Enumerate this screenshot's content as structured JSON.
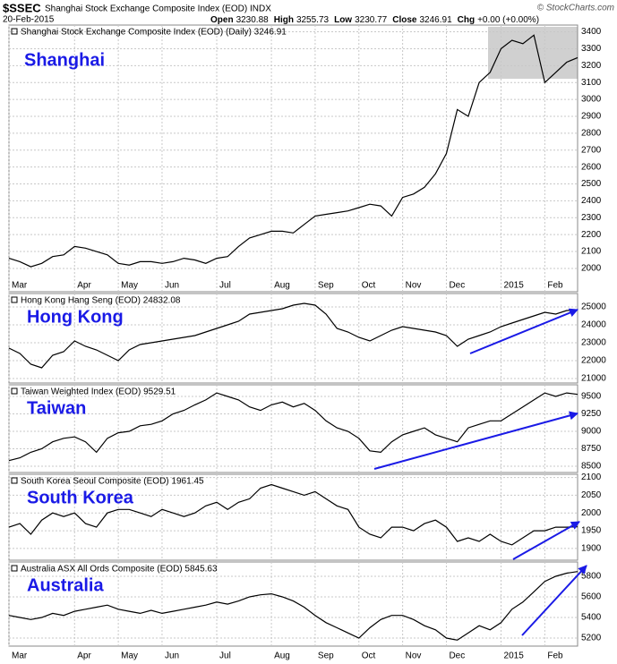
{
  "header": {
    "symbol": "$SSEC",
    "title": "Shanghai Stock Exchange Composite Index (EOD) INDX",
    "date": "20-Feb-2015",
    "quote": [
      {
        "label": "Open",
        "value": 3230.88
      },
      {
        "label": "High",
        "value": 3255.73
      },
      {
        "label": "Low",
        "value": 3230.77
      },
      {
        "label": "Close",
        "value": 3246.91
      },
      {
        "label": "Chg",
        "value": "+0.00 (+0.00%)"
      }
    ],
    "credit": "© StockCharts.com"
  },
  "chart_data": [
    {
      "type": "line",
      "label": "Shanghai",
      "categories": [
        "Mar",
        null,
        null,
        null,
        null,
        null,
        "Apr",
        null,
        null,
        null,
        "May",
        null,
        null,
        null,
        "Jun",
        null,
        null,
        null,
        null,
        "Jul",
        null,
        null,
        null,
        null,
        "Aug",
        null,
        null,
        null,
        "Sep",
        null,
        null,
        null,
        "Oct",
        null,
        null,
        null,
        "Nov",
        null,
        null,
        null,
        "Dec",
        null,
        null,
        null,
        null,
        "2015",
        null,
        null,
        null,
        "Feb",
        null,
        null,
        null
      ],
      "series": [
        {
          "name": "Shanghai Stock Exchange Composite Index (EOD) (Daily) 3246.91",
          "color": "#000000",
          "values": [
            2060,
            2040,
            2010,
            2030,
            2070,
            2080,
            2130,
            2120,
            2100,
            2080,
            2030,
            2020,
            2040,
            2040,
            2030,
            2040,
            2060,
            2050,
            2030,
            2060,
            2070,
            2130,
            2180,
            2200,
            2220,
            2220,
            2210,
            2260,
            2310,
            2320,
            2330,
            2340,
            2360,
            2380,
            2370,
            2310,
            2420,
            2440,
            2480,
            2560,
            2680,
            2940,
            2900,
            3100,
            3160,
            3300,
            3350,
            3330,
            3380,
            3100,
            3160,
            3220,
            3247
          ]
        }
      ],
      "ylim": [
        1862,
        3440
      ],
      "yticks": [
        2000,
        2100,
        2200,
        2300,
        2400,
        2500,
        2600,
        2700,
        2800,
        2900,
        3000,
        3100,
        3200,
        3300,
        3400
      ],
      "grid": true
    },
    {
      "type": "line",
      "label": "Hong Kong",
      "series": [
        {
          "name": "Hong Kong Hang Seng (EOD) 24832.08",
          "color": "#000000",
          "values": [
            22700,
            22400,
            21800,
            21600,
            22300,
            22500,
            23100,
            22800,
            22600,
            22300,
            22000,
            22600,
            22900,
            23000,
            23100,
            23200,
            23300,
            23400,
            23600,
            23800,
            24000,
            24200,
            24600,
            24700,
            24800,
            24900,
            25100,
            25200,
            25100,
            24600,
            23800,
            23600,
            23300,
            23100,
            23400,
            23700,
            23900,
            23800,
            23700,
            23600,
            23400,
            22800,
            23200,
            23400,
            23600,
            23900,
            24100,
            24300,
            24500,
            24700,
            24600,
            24800,
            24832
          ]
        }
      ],
      "ylim": [
        20750,
        25750
      ],
      "yticks": [
        21000,
        22000,
        23000,
        24000,
        25000
      ],
      "grid": true
    },
    {
      "type": "line",
      "label": "Taiwan",
      "series": [
        {
          "name": "Taiwan Weighted Index (EOD) 9529.51",
          "color": "#000000",
          "values": [
            8580,
            8620,
            8700,
            8750,
            8850,
            8900,
            8920,
            8850,
            8700,
            8900,
            8980,
            9000,
            9080,
            9100,
            9150,
            9250,
            9300,
            9380,
            9450,
            9550,
            9500,
            9450,
            9350,
            9300,
            9380,
            9420,
            9350,
            9400,
            9300,
            9150,
            9050,
            9000,
            8900,
            8720,
            8700,
            8850,
            8950,
            9000,
            9050,
            8950,
            8900,
            8850,
            9050,
            9100,
            9150,
            9150,
            9250,
            9350,
            9450,
            9550,
            9500,
            9550,
            9530
          ]
        }
      ],
      "ylim": [
        8410,
        9667
      ],
      "yticks": [
        8500,
        8750,
        9000,
        9250,
        9500
      ],
      "grid": true
    },
    {
      "type": "line",
      "label": "South Korea",
      "series": [
        {
          "name": "South Korea Seoul Composite (EOD) 1961.45",
          "color": "#000000",
          "values": [
            1960,
            1970,
            1940,
            1980,
            2000,
            1990,
            2000,
            1970,
            1960,
            2000,
            2010,
            2010,
            2000,
            1990,
            2010,
            2000,
            1990,
            2000,
            2020,
            2030,
            2010,
            2030,
            2040,
            2070,
            2080,
            2070,
            2060,
            2050,
            2060,
            2040,
            2020,
            2010,
            1960,
            1940,
            1930,
            1960,
            1960,
            1950,
            1970,
            1980,
            1960,
            1920,
            1930,
            1920,
            1940,
            1920,
            1910,
            1930,
            1950,
            1950,
            1960,
            1960,
            1961
          ]
        }
      ],
      "ylim": [
        1867,
        2109
      ],
      "yticks": [
        1900,
        1950,
        2000,
        2050,
        2100
      ],
      "grid": true
    },
    {
      "type": "line",
      "label": "Australia",
      "categories": [
        "Mar",
        null,
        null,
        null,
        null,
        null,
        "Apr",
        null,
        null,
        null,
        "May",
        null,
        null,
        null,
        "Jun",
        null,
        null,
        null,
        null,
        "Jul",
        null,
        null,
        null,
        null,
        "Aug",
        null,
        null,
        null,
        "Sep",
        null,
        null,
        null,
        "Oct",
        null,
        null,
        null,
        "Nov",
        null,
        null,
        null,
        "Dec",
        null,
        null,
        null,
        null,
        "2015",
        null,
        null,
        null,
        "Feb",
        null,
        null,
        null
      ],
      "series": [
        {
          "name": "Australia ASX All Ords Composite (EOD) 5845.63",
          "color": "#000000",
          "values": [
            5420,
            5400,
            5380,
            5400,
            5440,
            5420,
            5460,
            5480,
            5500,
            5520,
            5480,
            5460,
            5440,
            5470,
            5440,
            5460,
            5480,
            5500,
            5520,
            5550,
            5530,
            5560,
            5600,
            5620,
            5630,
            5600,
            5560,
            5500,
            5420,
            5350,
            5300,
            5250,
            5200,
            5300,
            5380,
            5420,
            5420,
            5380,
            5320,
            5280,
            5200,
            5180,
            5250,
            5320,
            5280,
            5350,
            5480,
            5550,
            5650,
            5750,
            5800,
            5830,
            5846
          ]
        }
      ],
      "ylim": [
        5122,
        5939
      ],
      "yticks": [
        5200,
        5400,
        5600,
        5800
      ],
      "grid": true
    }
  ]
}
